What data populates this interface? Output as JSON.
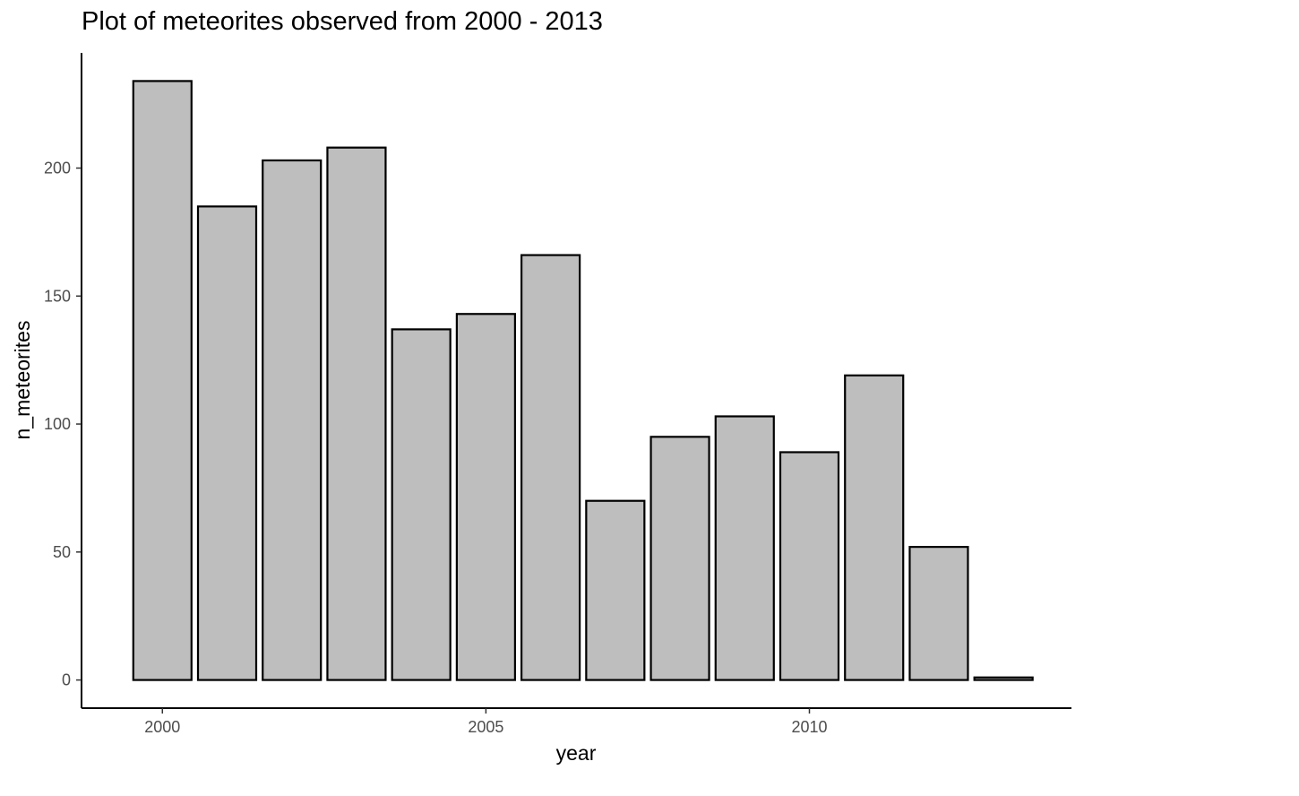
{
  "chart_data": {
    "type": "bar",
    "title": "Plot of meteorites observed from 2000 - 2013",
    "xlabel": "year",
    "ylabel": "n_meteorites",
    "x": [
      2000,
      2001,
      2002,
      2003,
      2004,
      2005,
      2006,
      2007,
      2008,
      2009,
      2010,
      2011,
      2012,
      2013
    ],
    "values": [
      234,
      185,
      203,
      208,
      137,
      143,
      166,
      70,
      95,
      103,
      89,
      119,
      52,
      1
    ],
    "x_ticks": [
      2000,
      2005,
      2010
    ],
    "y_ticks": [
      0,
      50,
      100,
      150,
      200
    ],
    "xlim": [
      1998.75,
      2014.05
    ],
    "ylim": [
      -11,
      245
    ],
    "bar_fill": "#bebebe",
    "bar_stroke": "#000000",
    "grid": false,
    "legend": "none"
  }
}
